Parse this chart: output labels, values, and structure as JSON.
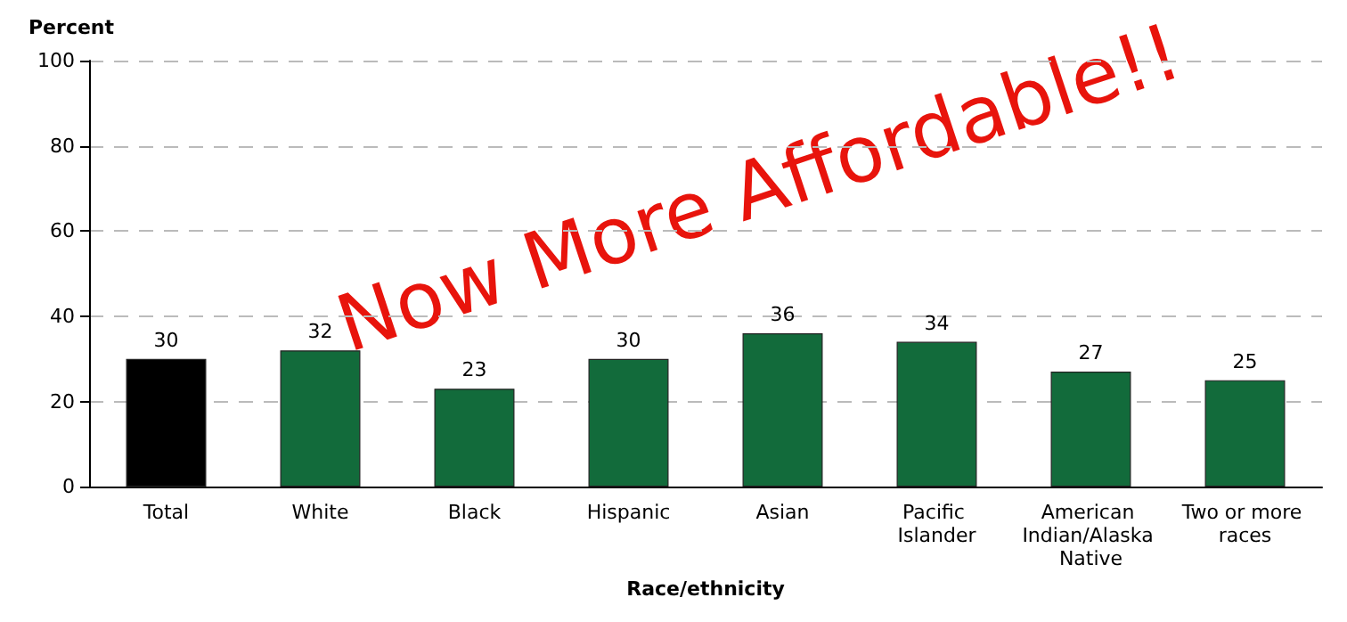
{
  "chart_data": {
    "type": "bar",
    "ylabel": "Percent",
    "xlabel": "Race/ethnicity",
    "categories": [
      "Total",
      "White",
      "Black",
      "Hispanic",
      "Asian",
      "Pacific Islander",
      "American Indian/Alaska Native",
      "Two or more races"
    ],
    "values": [
      30,
      32,
      23,
      30,
      36,
      34,
      27,
      25
    ],
    "colors": [
      "#000000",
      "#126b3b",
      "#126b3b",
      "#126b3b",
      "#126b3b",
      "#126b3b",
      "#126b3b",
      "#126b3b"
    ],
    "ylim": [
      0,
      100
    ],
    "yticks": [
      0,
      20,
      40,
      60,
      80,
      100
    ],
    "grid": "y",
    "data_labels": true,
    "annotations": [
      "Now More Affordable!!"
    ]
  }
}
